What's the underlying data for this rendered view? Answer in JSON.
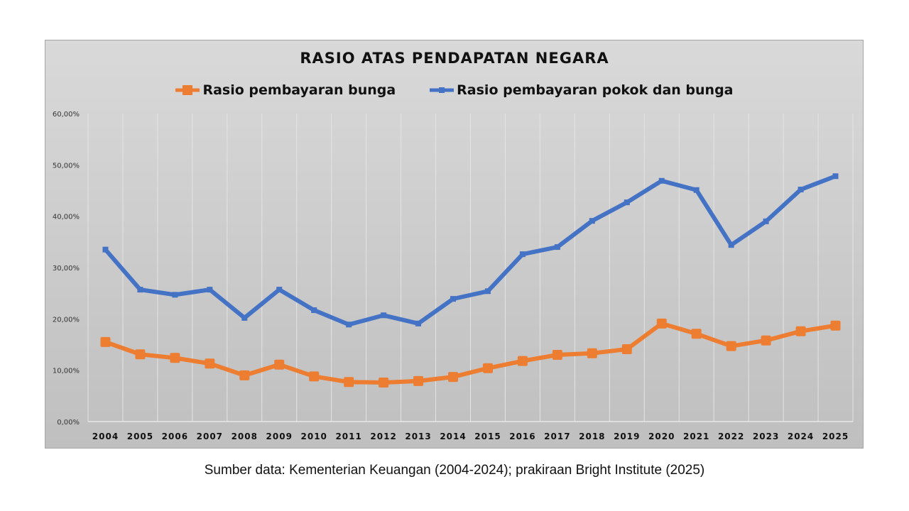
{
  "chart_data": {
    "type": "line",
    "title": "RASIO ATAS PENDAPATAN NEGARA",
    "categories": [
      "2004",
      "2005",
      "2006",
      "2007",
      "2008",
      "2009",
      "2010",
      "2011",
      "2012",
      "2013",
      "2014",
      "2015",
      "2016",
      "2017",
      "2018",
      "2019",
      "2020",
      "2021",
      "2022",
      "2023",
      "2024",
      "2025"
    ],
    "series": [
      {
        "name": "Rasio pembayaran bunga",
        "color": "#ed7d31",
        "marker": "square-large",
        "values": [
          15.5,
          13.1,
          12.4,
          11.3,
          9.0,
          11.1,
          8.8,
          7.7,
          7.6,
          7.9,
          8.7,
          10.4,
          11.8,
          13.0,
          13.3,
          14.1,
          19.1,
          17.1,
          14.7,
          15.8,
          17.6,
          18.7
        ]
      },
      {
        "name": "Rasio pembayaran pokok dan bunga",
        "color": "#4472c4",
        "marker": "square-small",
        "values": [
          33.5,
          25.7,
          24.7,
          25.7,
          20.2,
          25.7,
          21.7,
          18.9,
          20.7,
          19.1,
          23.9,
          25.4,
          32.6,
          34.0,
          39.1,
          42.7,
          46.9,
          45.1,
          34.4,
          39.0,
          45.2,
          47.8
        ]
      }
    ],
    "yticks": [
      "0,00%",
      "10,00%",
      "20,00%",
      "30,00%",
      "40,00%",
      "50,00%",
      "60,00%"
    ],
    "ylim": [
      0,
      60
    ],
    "xlabel": "",
    "ylabel": "",
    "grid": "vertical",
    "legend": "top"
  },
  "source": "Sumber data: Kementerian Keuangan (2004-2024); prakiraan Bright Institute (2025)"
}
